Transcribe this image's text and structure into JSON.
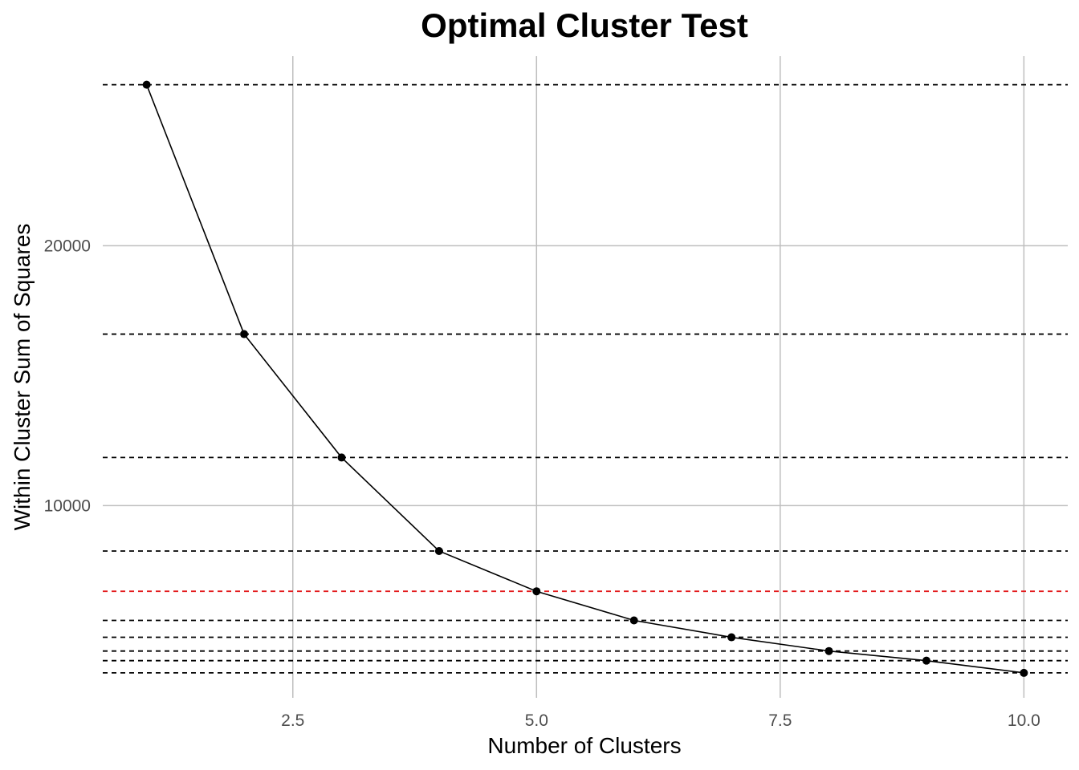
{
  "chart_data": {
    "type": "line",
    "title": "Optimal Cluster Test",
    "xlabel": "Number of Clusters",
    "ylabel": "Within  Cluster Sum of Squares",
    "x": [
      1,
      2,
      3,
      4,
      5,
      6,
      7,
      8,
      9,
      10
    ],
    "series": [
      {
        "values": [
          26200,
          16600,
          11850,
          8250,
          6700,
          5580,
          4930,
          4400,
          4030,
          3560
        ]
      }
    ],
    "xlim": [
      0.55,
      10.45
    ],
    "ylim": [
      2600,
      27300
    ],
    "x_ticks": [
      "2.5",
      "5.0",
      "7.5",
      "10.0"
    ],
    "y_ticks": [
      "10000",
      "20000"
    ],
    "grid": true,
    "reference_lines": {
      "orientation": "horizontal",
      "style": "dashed",
      "default_color": "#000000",
      "highlight_color": "#e31a1c",
      "highlight_at_x": 5
    },
    "colors": {
      "line": "#000000",
      "points": "#000000",
      "grid": "#bebebe",
      "background": "#ffffff"
    }
  }
}
